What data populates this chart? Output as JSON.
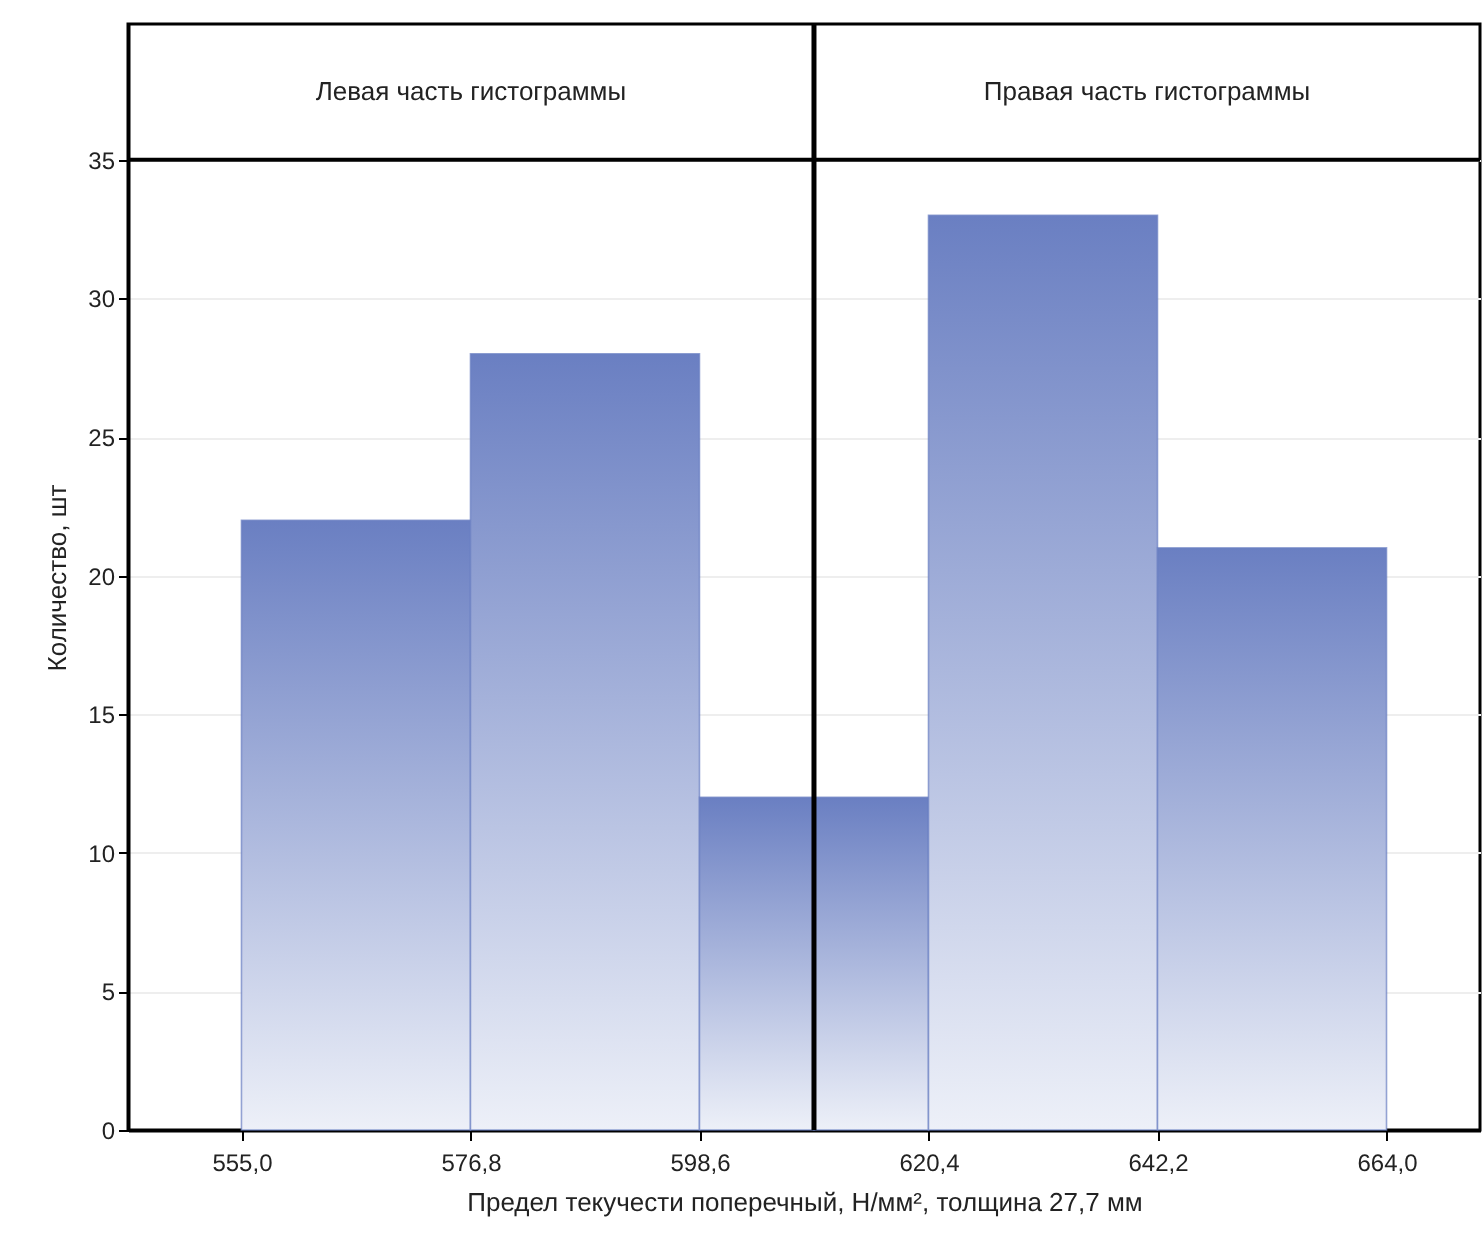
{
  "chart_data": {
    "type": "histogram",
    "xlabel": "Предел текучести поперечный, Н/мм², толщина 27,7 мм",
    "ylabel": "Количество, шт",
    "bins": [
      555.0,
      576.8,
      598.6,
      609.5,
      620.4,
      642.2,
      664.0
    ],
    "values": [
      22,
      28,
      12,
      12,
      33,
      21
    ],
    "color": "#6a7fc2",
    "xlim": [
      544.2,
      672.9
    ],
    "xticks": [
      {
        "value": 555.0,
        "label": "555,0"
      },
      {
        "value": 576.8,
        "label": "576,8"
      },
      {
        "value": 598.6,
        "label": "598,6"
      },
      {
        "value": 620.4,
        "label": "620,4"
      },
      {
        "value": 642.2,
        "label": "642,2"
      },
      {
        "value": 664.0,
        "label": "664,0"
      }
    ],
    "ylim": [
      0,
      39.9
    ],
    "yticks": [
      0,
      5,
      10,
      15,
      20,
      25,
      30,
      35
    ],
    "ref_lines": [
      {
        "axis": "x",
        "value": 609.5,
        "color": "#000000"
      },
      {
        "axis": "y",
        "value": 35,
        "color": "#000000"
      }
    ],
    "annotations": [
      "Левая часть гистограммы",
      "Правая часть гистограммы"
    ],
    "grid": "y"
  }
}
